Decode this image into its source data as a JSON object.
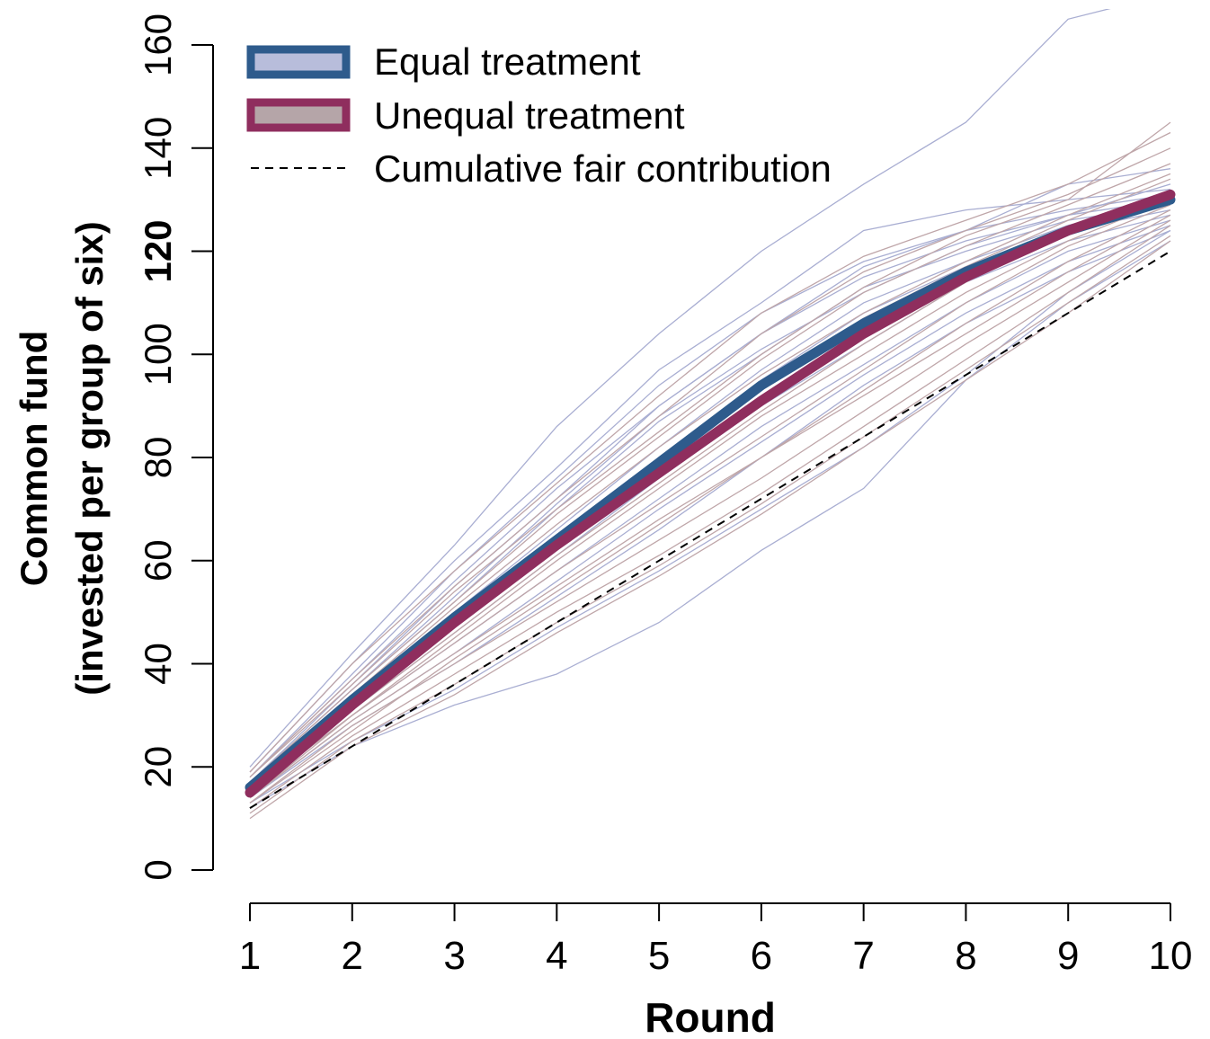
{
  "chart_data": {
    "type": "line",
    "xlabel": "Round",
    "ylabel_line1": "Common fund",
    "ylabel_line2": "(invested per group of six)",
    "x": [
      1,
      2,
      3,
      4,
      5,
      6,
      7,
      8,
      9,
      10
    ],
    "xlim": [
      1,
      10
    ],
    "ylim": [
      0,
      160
    ],
    "x_ticks": [
      1,
      2,
      3,
      4,
      5,
      6,
      7,
      8,
      9,
      10
    ],
    "y_ticks": [
      0,
      20,
      40,
      60,
      80,
      100,
      120,
      140,
      160
    ],
    "y_tick_bold": 120,
    "grid": false,
    "legend_position": "top-left",
    "legend": [
      {
        "label": "Equal treatment",
        "style": "thick-box",
        "color": "#2e5b8c",
        "fill": "#b8bddb"
      },
      {
        "label": "Unequal treatment",
        "style": "thick-box",
        "color": "#8f2e5e",
        "fill": "#b5a5a8"
      },
      {
        "label": "Cumulative fair contribution",
        "style": "dashed",
        "color": "#000000"
      }
    ],
    "series": [
      {
        "name": "Equal treatment",
        "role": "mean",
        "color": "#2e5b8c",
        "values": [
          16,
          33,
          49,
          64,
          79,
          94,
          106,
          116,
          124,
          130
        ]
      },
      {
        "name": "Unequal treatment",
        "role": "mean",
        "color": "#8f2e5e",
        "values": [
          15,
          32,
          48,
          63,
          77,
          91,
          104,
          115,
          124,
          131
        ]
      },
      {
        "name": "Cumulative fair contribution",
        "role": "reference",
        "color": "#000000",
        "values": [
          12,
          24,
          36,
          48,
          60,
          72,
          84,
          96,
          108,
          120
        ]
      }
    ],
    "group_lines_equal": [
      [
        20,
        42,
        63,
        86,
        104,
        120,
        133,
        145,
        165,
        170
      ],
      [
        19,
        40,
        60,
        78,
        97,
        110,
        124,
        128,
        130,
        132
      ],
      [
        18,
        38,
        58,
        76,
        94,
        108,
        118,
        124,
        128,
        131
      ],
      [
        17,
        36,
        55,
        72,
        90,
        104,
        115,
        122,
        127,
        130
      ],
      [
        17,
        35,
        52,
        70,
        87,
        100,
        113,
        120,
        126,
        129
      ],
      [
        16,
        34,
        50,
        66,
        82,
        97,
        110,
        118,
        125,
        130
      ],
      [
        16,
        32,
        48,
        64,
        80,
        95,
        108,
        117,
        124,
        128
      ],
      [
        15,
        31,
        46,
        61,
        76,
        90,
        102,
        114,
        122,
        127
      ],
      [
        15,
        30,
        44,
        58,
        72,
        86,
        98,
        110,
        120,
        126
      ],
      [
        14,
        29,
        42,
        56,
        70,
        83,
        96,
        108,
        118,
        125
      ],
      [
        14,
        28,
        40,
        53,
        66,
        80,
        94,
        106,
        116,
        124
      ],
      [
        13,
        25,
        35,
        47,
        58,
        70,
        82,
        96,
        112,
        124
      ],
      [
        12,
        24,
        32,
        38,
        48,
        62,
        74,
        95,
        110,
        122
      ],
      [
        18,
        37,
        56,
        74,
        90,
        104,
        117,
        124,
        133,
        136
      ],
      [
        17,
        35,
        53,
        71,
        88,
        101,
        112,
        121,
        127,
        133
      ]
    ],
    "group_lines_unequal": [
      [
        19,
        40,
        58,
        75,
        92,
        108,
        119,
        126,
        133,
        143
      ],
      [
        18,
        37,
        55,
        72,
        88,
        104,
        116,
        124,
        131,
        140
      ],
      [
        17,
        35,
        52,
        69,
        84,
        99,
        112,
        121,
        129,
        137
      ],
      [
        16,
        33,
        49,
        65,
        80,
        94,
        107,
        117,
        126,
        134
      ],
      [
        15,
        31,
        46,
        61,
        75,
        89,
        102,
        114,
        124,
        131
      ],
      [
        15,
        30,
        44,
        58,
        71,
        84,
        97,
        110,
        121,
        129
      ],
      [
        14,
        29,
        42,
        55,
        68,
        80,
        93,
        106,
        118,
        128
      ],
      [
        13,
        28,
        40,
        52,
        64,
        76,
        89,
        102,
        114,
        126
      ],
      [
        12,
        26,
        38,
        50,
        61,
        73,
        86,
        99,
        112,
        125
      ],
      [
        11,
        25,
        36,
        48,
        59,
        71,
        84,
        97,
        110,
        123
      ],
      [
        10,
        24,
        34,
        46,
        57,
        69,
        82,
        95,
        108,
        122
      ],
      [
        16,
        34,
        51,
        67,
        82,
        96,
        108,
        118,
        127,
        135
      ],
      [
        14,
        30,
        45,
        60,
        74,
        88,
        100,
        112,
        122,
        130
      ],
      [
        13,
        27,
        41,
        54,
        67,
        80,
        92,
        104,
        116,
        127
      ],
      [
        18,
        36,
        54,
        70,
        85,
        100,
        113,
        123,
        130,
        145
      ]
    ]
  }
}
